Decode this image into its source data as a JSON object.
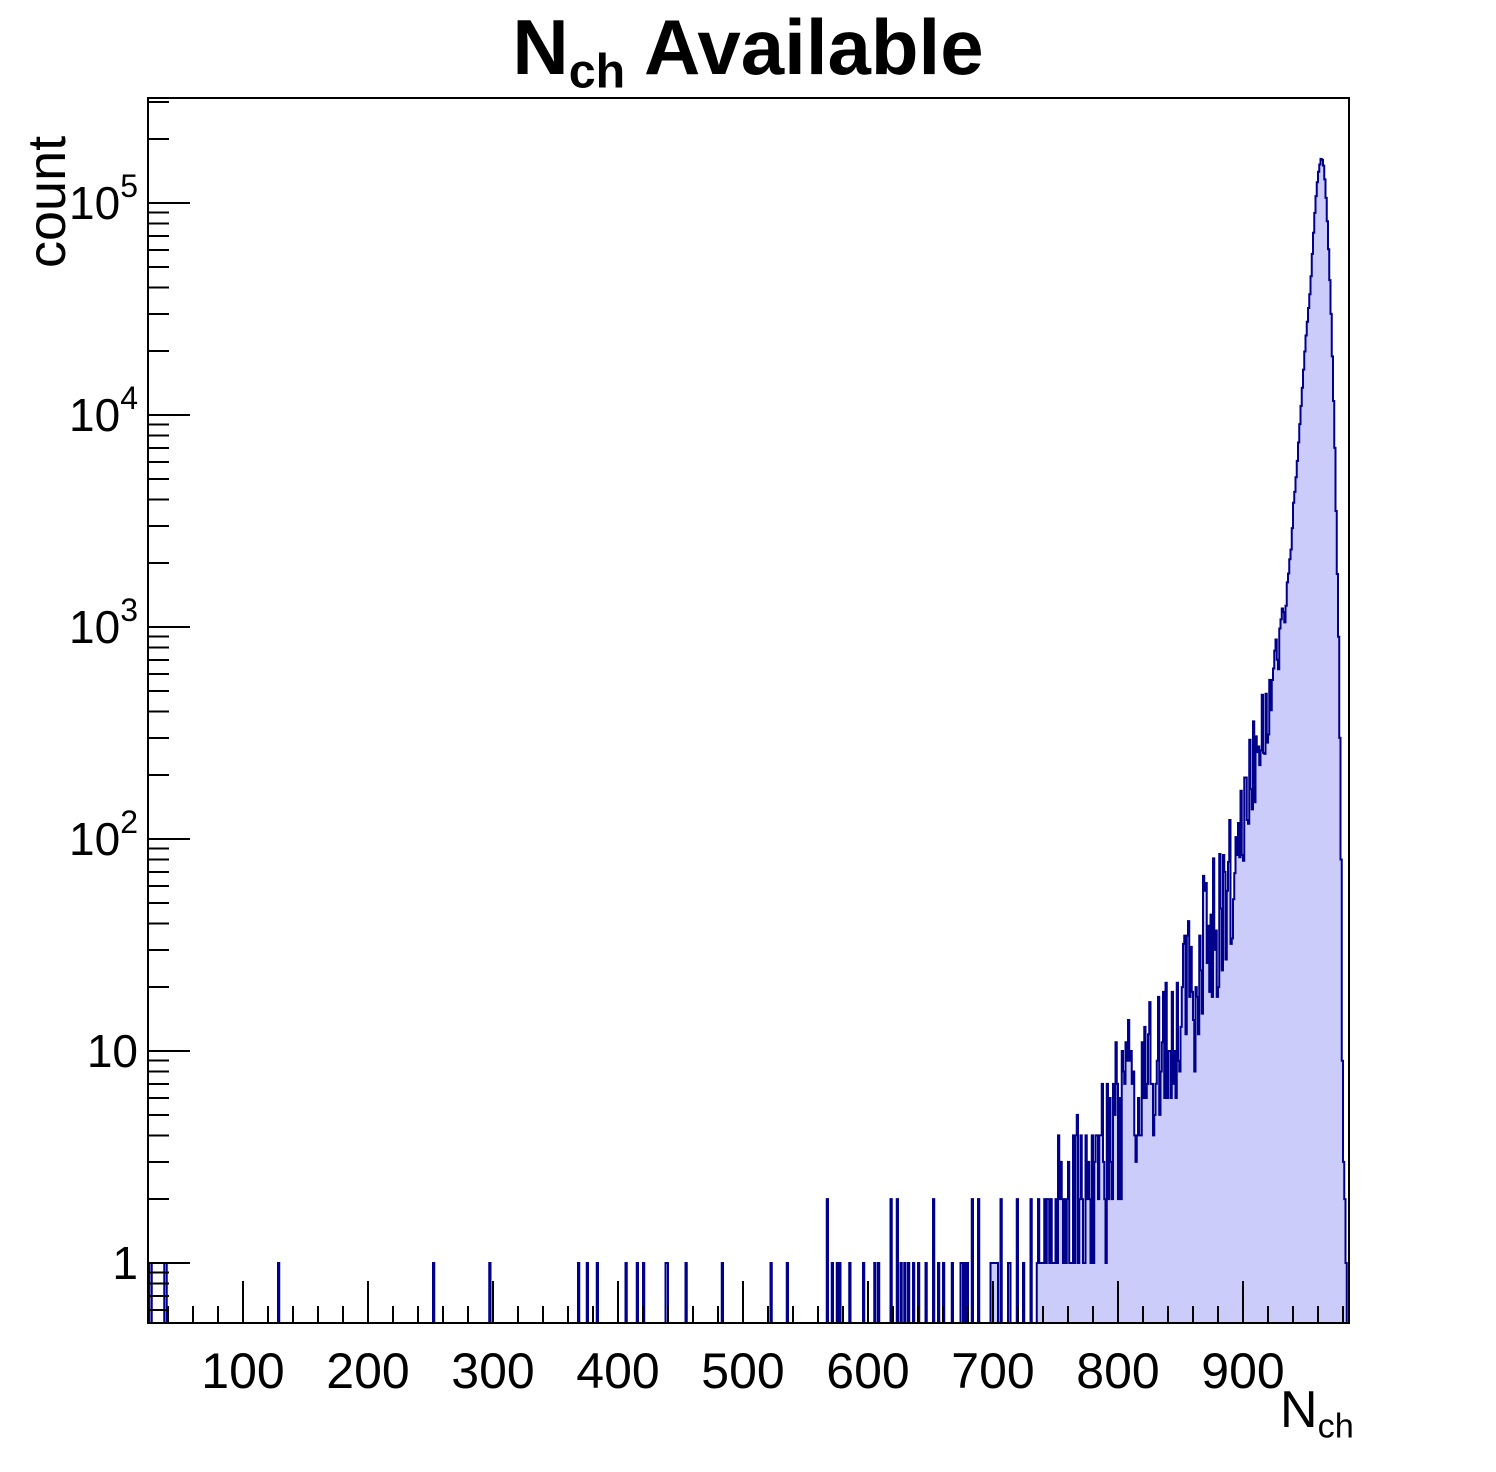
{
  "title": {
    "main": "N",
    "sub": "ch",
    "rest": " Available"
  },
  "y_axis": {
    "label": "count",
    "scale": "log",
    "ticks": [
      {
        "v": 1,
        "text": "1"
      },
      {
        "v": 10,
        "text": "10"
      },
      {
        "v": 100,
        "base": "10",
        "exp": "2"
      },
      {
        "v": 1000,
        "base": "10",
        "exp": "3"
      },
      {
        "v": 10000,
        "base": "10",
        "exp": "4"
      },
      {
        "v": 100000,
        "base": "10",
        "exp": "5"
      }
    ]
  },
  "x_axis": {
    "label_main": "N",
    "label_sub": "ch",
    "major_ticks": [
      100,
      200,
      300,
      400,
      500,
      600,
      700,
      800,
      900
    ],
    "minor_step": 20
  },
  "colors": {
    "fill": "#ccccfa",
    "line": "#00008b",
    "axis": "#000000",
    "background": "#ffffff"
  },
  "chart_data": {
    "type": "bar",
    "subtype": "histogram",
    "title": "N_ch Available",
    "xlabel": "N_ch",
    "ylabel": "count",
    "y_scale": "log",
    "xlim": [
      24,
      985
    ],
    "ylim": [
      0.52,
      310000
    ],
    "bin_width": 1,
    "peak": {
      "x": 963,
      "count": 165000
    },
    "envelope": [
      [
        735,
        1
      ],
      [
        750,
        1.4
      ],
      [
        765,
        2
      ],
      [
        780,
        2.8
      ],
      [
        795,
        4
      ],
      [
        810,
        5.5
      ],
      [
        822,
        7
      ],
      [
        834,
        9
      ],
      [
        846,
        12
      ],
      [
        858,
        17
      ],
      [
        870,
        28
      ],
      [
        880,
        38
      ],
      [
        890,
        60
      ],
      [
        895,
        100
      ],
      [
        905,
        180
      ],
      [
        912,
        260
      ],
      [
        918,
        380
      ],
      [
        925,
        600
      ],
      [
        932,
        1000
      ],
      [
        938,
        2500
      ],
      [
        943,
        5500
      ],
      [
        946,
        10000
      ],
      [
        950,
        22000
      ],
      [
        954,
        40000
      ],
      [
        956,
        65000
      ],
      [
        958,
        100000
      ],
      [
        960,
        135000
      ],
      [
        962,
        158000
      ],
      [
        963,
        165000
      ],
      [
        964.5,
        150000
      ],
      [
        966,
        120000
      ],
      [
        967.5,
        82000
      ],
      [
        969,
        52000
      ],
      [
        970.5,
        30000
      ],
      [
        972,
        15000
      ],
      [
        973.5,
        7000
      ],
      [
        975,
        2500
      ],
      [
        976.5,
        900
      ],
      [
        977.5,
        300
      ],
      [
        978.5,
        80
      ],
      [
        979.2,
        15
      ],
      [
        980,
        4
      ],
      [
        981,
        2
      ],
      [
        982.8,
        1
      ]
    ],
    "spikes": [
      [
        25,
        1
      ],
      [
        26,
        1
      ],
      [
        37,
        1
      ],
      [
        38,
        1
      ],
      [
        128,
        1
      ],
      [
        252,
        1
      ],
      [
        297,
        1
      ],
      [
        368,
        1
      ],
      [
        375,
        1
      ],
      [
        383,
        1
      ],
      [
        406,
        1
      ],
      [
        415,
        1
      ],
      [
        420,
        1
      ],
      [
        438,
        1
      ],
      [
        439,
        1
      ],
      [
        454,
        1
      ],
      [
        483,
        1
      ],
      [
        522,
        1
      ],
      [
        535,
        1
      ],
      [
        567,
        2
      ],
      [
        571,
        1
      ],
      [
        575,
        1
      ],
      [
        577,
        1
      ],
      [
        585,
        1
      ],
      [
        596,
        1
      ],
      [
        605,
        1
      ],
      [
        608,
        1
      ],
      [
        618,
        2
      ],
      [
        623,
        2
      ],
      [
        626,
        1
      ],
      [
        629,
        1
      ],
      [
        632,
        1
      ],
      [
        636,
        1
      ],
      [
        640,
        1
      ],
      [
        646,
        1
      ],
      [
        652,
        2
      ],
      [
        656,
        1
      ],
      [
        660,
        1
      ],
      [
        667,
        1
      ],
      [
        674,
        1
      ],
      [
        675,
        1
      ],
      [
        677,
        1
      ],
      [
        679,
        1
      ],
      [
        683,
        2
      ],
      [
        688,
        2
      ],
      [
        698,
        1
      ],
      [
        699,
        1
      ],
      [
        700,
        1
      ],
      [
        701,
        1
      ],
      [
        702,
        1
      ],
      [
        703,
        1
      ],
      [
        706,
        2
      ],
      [
        712,
        1
      ],
      [
        713,
        1
      ],
      [
        719,
        2
      ],
      [
        724,
        1
      ],
      [
        730,
        2
      ]
    ],
    "noise": {
      "x_start": 735,
      "x_end": 940,
      "amp_main": 0.42,
      "amp_taper_start": 870,
      "amp_peak": 0.06,
      "sin_mult": 127.1,
      "hash_scale": 43758.5453
    }
  }
}
